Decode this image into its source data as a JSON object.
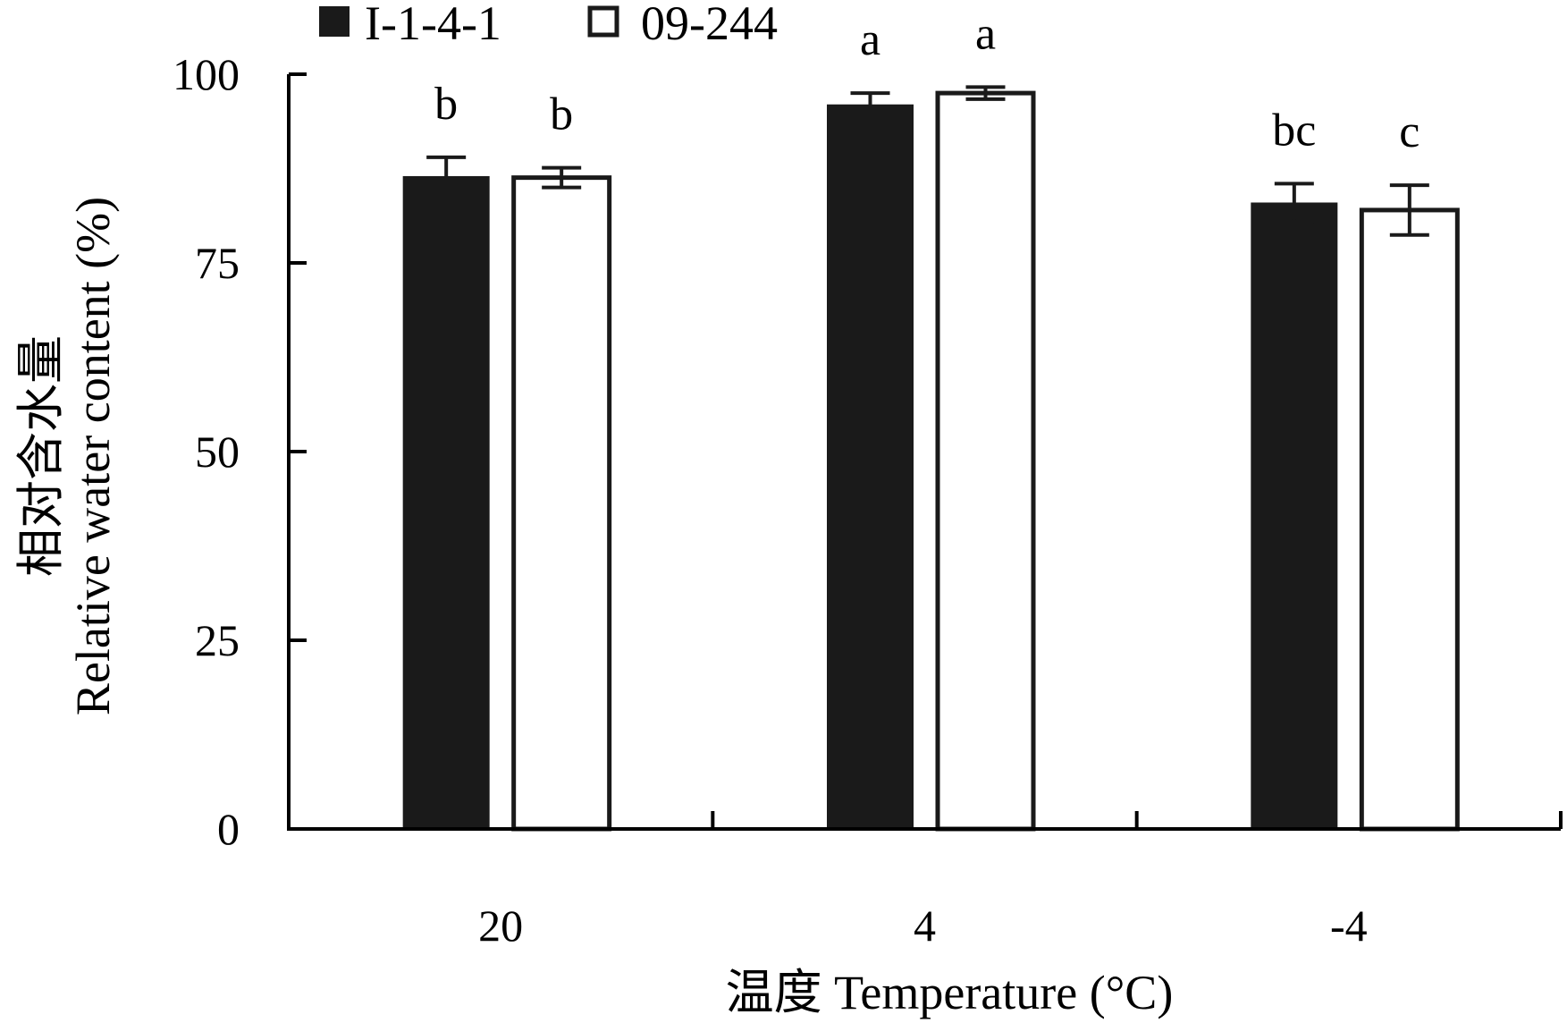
{
  "chart_data": {
    "type": "bar",
    "categories": [
      "20",
      "4",
      "-4"
    ],
    "series": [
      {
        "name": "I-1-4-1",
        "color": "#1a1a1a",
        "values": [
          86.5,
          96,
          83
        ],
        "errors": [
          2.5,
          1.5,
          2.5
        ],
        "significance": [
          "b",
          "a",
          "bc"
        ]
      },
      {
        "name": "09-244",
        "color": "#ffffff",
        "values": [
          86.3,
          97.5,
          82
        ],
        "errors": [
          1.3,
          0.8,
          3.3
        ],
        "significance": [
          "b",
          "a",
          "c"
        ]
      }
    ],
    "xlabel": "温度 Temperature (°C)",
    "ylabel_cn": "相对含水量",
    "ylabel_en": "Relative water content (%)",
    "ylim": [
      0,
      100
    ],
    "yticks": [
      0,
      25,
      50,
      75,
      100
    ],
    "grid": false,
    "legend_position": "top-left",
    "error_bars": true
  }
}
